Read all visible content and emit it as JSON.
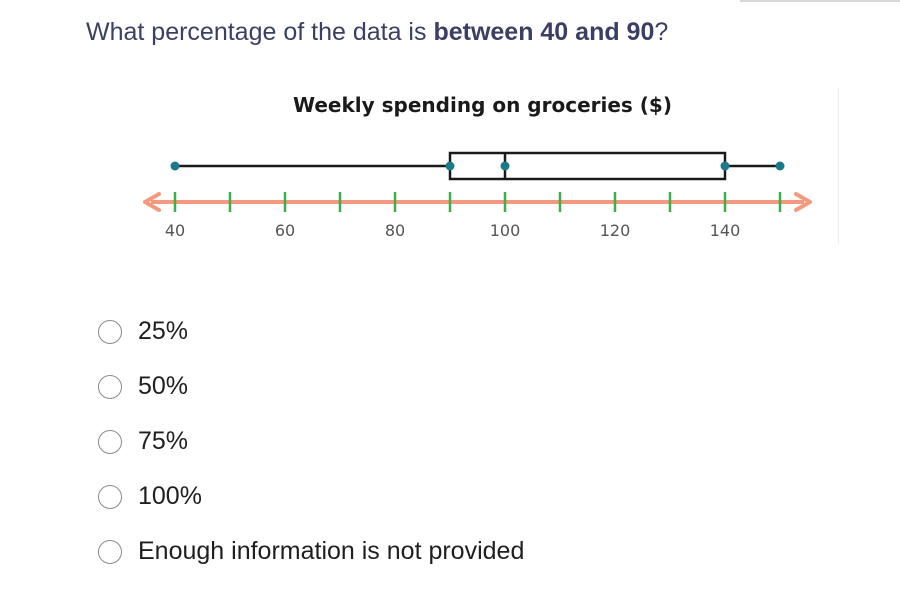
{
  "question": {
    "prefix": "What percentage of the data is ",
    "bold": "between 40 and 90",
    "suffix": "?"
  },
  "chart_data": {
    "type": "boxplot",
    "title": "Weekly spending on groceries ($)",
    "min": 40,
    "q1": 90,
    "median": 100,
    "q3": 140,
    "max": 150,
    "axis": {
      "min": 40,
      "max": 150,
      "tick_step": 10,
      "labeled_ticks": [
        "40",
        "60",
        "80",
        "100",
        "120",
        "140"
      ]
    },
    "colors": {
      "box": "#1a1a1a",
      "points": "#1b7a8a",
      "number_line": "#f39a7e",
      "ticks": "#3fae49",
      "tick_labels": "#555555"
    }
  },
  "options": [
    {
      "label": "25%"
    },
    {
      "label": "50%"
    },
    {
      "label": "75%"
    },
    {
      "label": "100%"
    },
    {
      "label": "Enough information is not provided"
    }
  ]
}
